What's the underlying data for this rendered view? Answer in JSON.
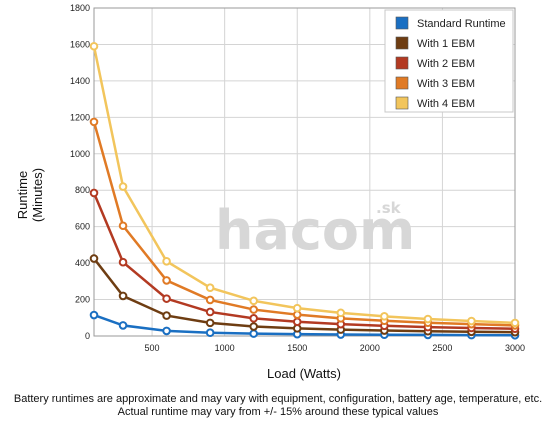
{
  "chart_data": {
    "type": "line",
    "xlabel": "Load (Watts)",
    "ylabel": "Runtime",
    "ylabel_unit": "(Minutes)",
    "xlim": [
      100,
      3000
    ],
    "ylim": [
      0,
      1800
    ],
    "x_ticks": [
      500,
      1000,
      1500,
      2000,
      2500,
      3000
    ],
    "y_ticks": [
      0,
      200,
      400,
      600,
      800,
      1000,
      1200,
      1400,
      1600,
      1800
    ],
    "grid": true,
    "legend_position": "top-right",
    "x": [
      100,
      300,
      600,
      900,
      1200,
      1500,
      1800,
      2100,
      2400,
      2700,
      3000
    ],
    "series": [
      {
        "name": "Standard Runtime",
        "color": "#1a6fc2",
        "values": [
          115,
          58,
          28,
          18,
          13,
          10,
          8,
          7,
          6,
          5,
          4
        ]
      },
      {
        "name": "With 1 EBM",
        "color": "#6e3d12",
        "values": [
          425,
          220,
          112,
          72,
          52,
          42,
          35,
          30,
          26,
          23,
          21
        ]
      },
      {
        "name": "With 2 EBM",
        "color": "#b33a22",
        "values": [
          785,
          405,
          205,
          132,
          97,
          78,
          65,
          56,
          49,
          44,
          40
        ]
      },
      {
        "name": "With 3 EBM",
        "color": "#e07a25",
        "values": [
          1175,
          605,
          305,
          198,
          145,
          117,
          97,
          84,
          73,
          65,
          58
        ]
      },
      {
        "name": "With 4 EBM",
        "color": "#f2c55c",
        "values": [
          1590,
          820,
          410,
          265,
          193,
          153,
          127,
          108,
          93,
          82,
          72
        ]
      }
    ]
  },
  "watermark": {
    "main": "hacom",
    "suffix": ".sk"
  },
  "notes": {
    "line1": "Battery runtimes are approximate and may vary with equipment, configuration, battery age, temperature, etc.",
    "line2": "Actual runtime may vary from +/- 15% around these typical values"
  }
}
